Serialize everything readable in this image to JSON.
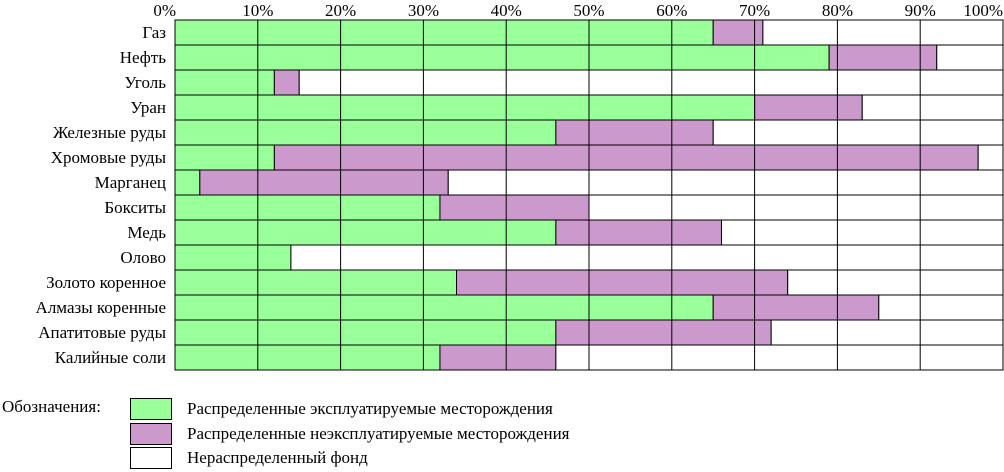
{
  "chart_data": {
    "type": "bar",
    "orientation": "horizontal",
    "stacked": true,
    "axis": {
      "position": "top",
      "ticks": [
        "0%",
        "10%",
        "20%",
        "30%",
        "40%",
        "50%",
        "60%",
        "70%",
        "80%",
        "90%",
        "100%"
      ],
      "xlim": [
        0,
        100
      ],
      "unit": "%"
    },
    "grid": "on",
    "categories": [
      "Газ",
      "Нефть",
      "Уголь",
      "Уран",
      "Железные руды",
      "Хромовые руды",
      "Марганец",
      "Бокситы",
      "Медь",
      "Олово",
      "Золото коренное",
      "Алмазы коренные",
      "Апатитовые руды",
      "Калийные соли"
    ],
    "series": [
      {
        "name": "Распределенные эксплуатируемые месторождения",
        "color": "#99ff99",
        "values": [
          65,
          79,
          12,
          70,
          46,
          12,
          3,
          32,
          46,
          14,
          34,
          65,
          46,
          32
        ]
      },
      {
        "name": "Распределенные неэксплуатируемые месторождения",
        "color": "#cc99cc",
        "values": [
          6,
          13,
          3,
          13,
          19,
          85,
          30,
          18,
          20,
          0,
          40,
          20,
          26,
          14
        ]
      },
      {
        "name": "Нераспределенный фонд",
        "color": "#ffffff",
        "values": [
          29,
          8,
          85,
          17,
          35,
          3,
          67,
          50,
          34,
          86,
          26,
          15,
          28,
          54
        ]
      }
    ]
  },
  "legend": {
    "title": "Обозначения:",
    "items": [
      {
        "label": "Распределенные эксплуатируемые месторождения",
        "color": "#99ff99"
      },
      {
        "label": "Распределенные неэксплуатируемые месторождения",
        "color": "#cc99cc"
      },
      {
        "label": "Нераспределенный фонд",
        "color": "#ffffff"
      }
    ]
  }
}
